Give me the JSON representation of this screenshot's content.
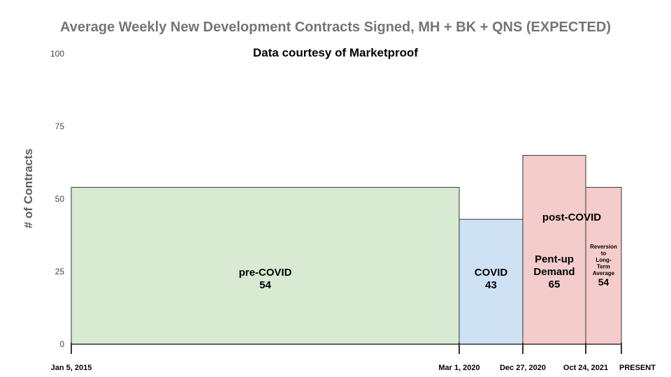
{
  "chart_data": {
    "type": "bar",
    "title": "Average Weekly New Development Contracts Signed, MH + BK + QNS (EXPECTED)",
    "subtitle": "Data courtesy of Marketproof",
    "ylabel": "# of Contracts",
    "ylim": [
      0,
      100
    ],
    "yticks": [
      0,
      25,
      50,
      75,
      100
    ],
    "x_boundaries": [
      "Jan 5, 2015",
      "Mar 1, 2020",
      "Dec 27, 2020",
      "Oct 24, 2021",
      "PRESENT"
    ],
    "group_annotation": "post-COVID",
    "colors": {
      "pre": "#d9ead3",
      "covid": "#cfe2f3",
      "post": "#f4cccc",
      "edge": "#333333"
    },
    "bars": [
      {
        "start": "Jan 5, 2015",
        "end": "Mar 1, 2020",
        "value": 54,
        "label_lines": [
          "pre-COVID"
        ],
        "color_key": "pre",
        "label_size": 15
      },
      {
        "start": "Mar 1, 2020",
        "end": "Dec 27, 2020",
        "value": 43,
        "label_lines": [
          "COVID"
        ],
        "color_key": "covid",
        "label_size": 15
      },
      {
        "start": "Dec 27, 2020",
        "end": "Oct 24, 2021",
        "value": 65,
        "label_lines": [
          "Pent-up",
          "Demand"
        ],
        "color_key": "post",
        "label_size": 15
      },
      {
        "start": "Oct 24, 2021",
        "end": "PRESENT",
        "value": 54,
        "label_lines": [
          "Reversion",
          "to",
          "Long-",
          "Term",
          "Average"
        ],
        "color_key": "post",
        "label_size": 8
      }
    ]
  }
}
